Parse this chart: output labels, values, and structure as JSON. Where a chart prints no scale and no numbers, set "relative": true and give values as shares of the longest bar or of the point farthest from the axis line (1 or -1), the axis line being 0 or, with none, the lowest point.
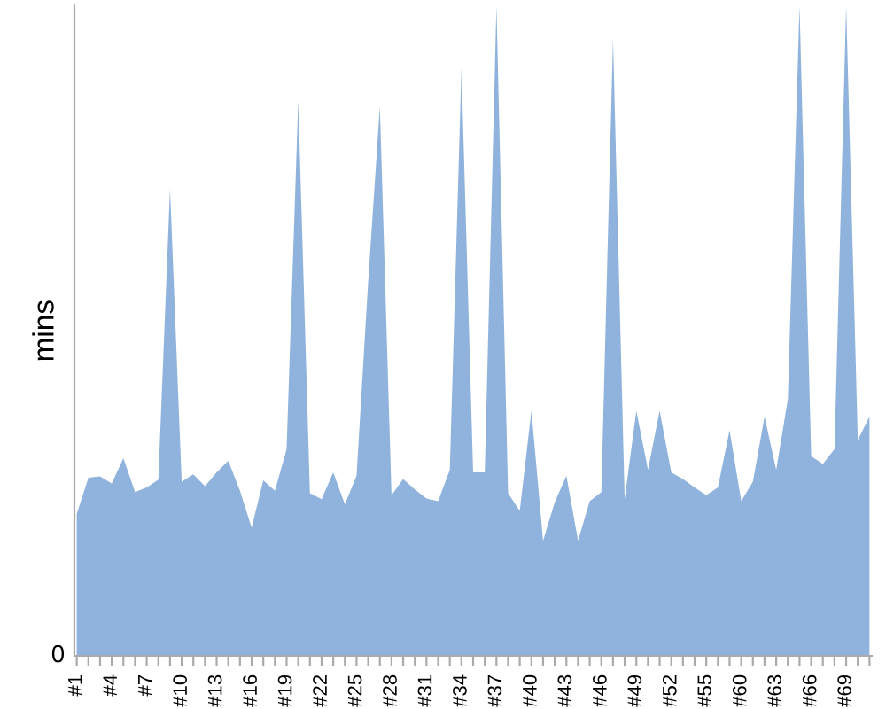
{
  "chart_data": {
    "type": "area",
    "relative": true,
    "ylabel": "mins",
    "annotations": [
      "0"
    ],
    "color": "#8fb3dc",
    "grid": false,
    "categories": [
      "#1",
      null,
      null,
      "#4",
      null,
      null,
      "#7",
      null,
      null,
      "#10",
      null,
      null,
      "#13",
      null,
      null,
      "#16",
      null,
      null,
      "#19",
      null,
      null,
      "#22",
      null,
      null,
      "#25",
      null,
      null,
      "#28",
      null,
      null,
      "#31",
      null,
      null,
      "#34",
      null,
      null,
      "#37",
      null,
      null,
      "#40",
      null,
      null,
      "#43",
      null,
      null,
      "#46",
      null,
      null,
      "#49",
      null,
      null,
      "#52",
      null,
      null,
      "#55",
      null,
      null,
      "#60",
      null,
      null,
      "#63",
      null,
      null,
      "#66",
      null,
      null,
      "#69",
      null,
      null
    ],
    "values": [
      0.218,
      0.274,
      0.276,
      0.265,
      0.304,
      0.252,
      0.259,
      0.271,
      0.718,
      0.268,
      0.279,
      0.261,
      0.282,
      0.3,
      0.254,
      0.197,
      0.27,
      0.254,
      0.318,
      0.854,
      0.25,
      0.241,
      0.282,
      0.233,
      0.277,
      0.576,
      0.845,
      0.247,
      0.272,
      0.256,
      0.242,
      0.238,
      0.286,
      0.904,
      0.282,
      0.282,
      1,
      0.25,
      0.223,
      0.377,
      0.177,
      0.236,
      0.277,
      0.177,
      0.238,
      0.252,
      0.949,
      0.241,
      0.377,
      0.286,
      0.377,
      0.282,
      0.272,
      0.259,
      0.247,
      0.259,
      0.347,
      0.238,
      0.268,
      0.368,
      0.286,
      0.395,
      1,
      0.307,
      0.295,
      0.318,
      1,
      0.332,
      0.368
    ]
  }
}
